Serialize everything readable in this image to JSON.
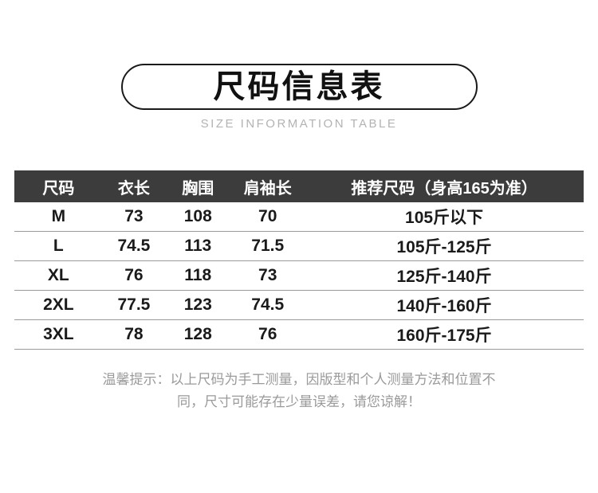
{
  "header": {
    "title": "尺码信息表",
    "subtitle": "SIZE INFORMATION TABLE"
  },
  "table": {
    "headers": [
      "尺码",
      "衣长",
      "胸围",
      "肩袖长",
      "推荐尺码（身高165为准）"
    ],
    "rows": [
      [
        "M",
        "73",
        "108",
        "70",
        "105斤以下"
      ],
      [
        "L",
        "74.5",
        "113",
        "71.5",
        "105斤-125斤"
      ],
      [
        "XL",
        "76",
        "118",
        "73",
        "125斤-140斤"
      ],
      [
        "2XL",
        "77.5",
        "123",
        "74.5",
        "140斤-160斤"
      ],
      [
        "3XL",
        "78",
        "128",
        "76",
        "160斤-175斤"
      ]
    ]
  },
  "note": "温馨提示：以上尺码为手工测量，因版型和个人测量方法和位置不同，尺寸可能存在少量误差，请您谅解！",
  "colors": {
    "table_header_bg": "#3c3c3c",
    "table_header_text": "#ffffff",
    "body_text": "#1a1a1a",
    "divider": "#9a9a9a",
    "subtitle_text": "#b3b3b3",
    "note_text": "#9a9a9a",
    "pill_border": "#1a1a1a"
  },
  "chart_data": {
    "type": "table",
    "title": "尺码信息表",
    "subtitle": "SIZE INFORMATION TABLE",
    "columns": [
      "尺码",
      "衣长",
      "胸围",
      "肩袖长",
      "推荐尺码（身高165为准）"
    ],
    "rows": [
      [
        "M",
        73,
        108,
        70,
        "105斤以下"
      ],
      [
        "L",
        74.5,
        113,
        71.5,
        "105斤-125斤"
      ],
      [
        "XL",
        76,
        118,
        73,
        "125斤-140斤"
      ],
      [
        "2XL",
        77.5,
        123,
        74.5,
        "140斤-160斤"
      ],
      [
        "3XL",
        78,
        128,
        76,
        "160斤-175斤"
      ]
    ]
  }
}
